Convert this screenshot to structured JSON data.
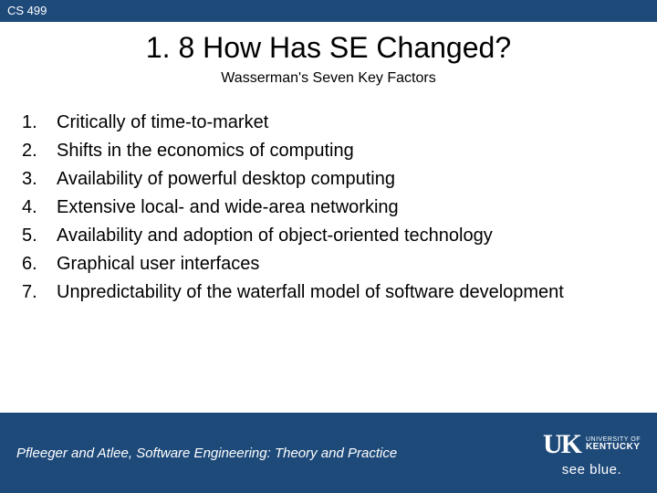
{
  "header": {
    "course_code": "CS 499"
  },
  "slide": {
    "title": "1. 8 How Has SE Changed?",
    "subtitle": "Wasserman's Seven Key Factors",
    "items": [
      {
        "num": "1.",
        "text": "Critically of time-to-market"
      },
      {
        "num": "2.",
        "text": "Shifts in the economics of computing"
      },
      {
        "num": "3.",
        "text": "Availability of powerful desktop computing"
      },
      {
        "num": "4.",
        "text": "Extensive local- and wide-area networking"
      },
      {
        "num": "5.",
        "text": "Availability and adoption of object-oriented technology"
      },
      {
        "num": "6.",
        "text": "Graphical user interfaces"
      },
      {
        "num": "7.",
        "text": "Unpredictability of the waterfall model of software development"
      }
    ]
  },
  "footer": {
    "credit": "Pfleeger and Atlee, Software Engineering: Theory and Practice",
    "logo_mark": "UK",
    "logo_line1": "UNIVERSITY OF",
    "logo_line2": "KENTUCKY",
    "tagline": "see blue."
  },
  "style": {
    "bar_bg": "#1e4a7a",
    "page_bg": "#ffffff",
    "text_color": "#000000",
    "footer_text_color": "#ffffff",
    "title_fontsize": 32,
    "subtitle_fontsize": 16,
    "body_fontsize": 20,
    "credit_fontsize": 15
  }
}
